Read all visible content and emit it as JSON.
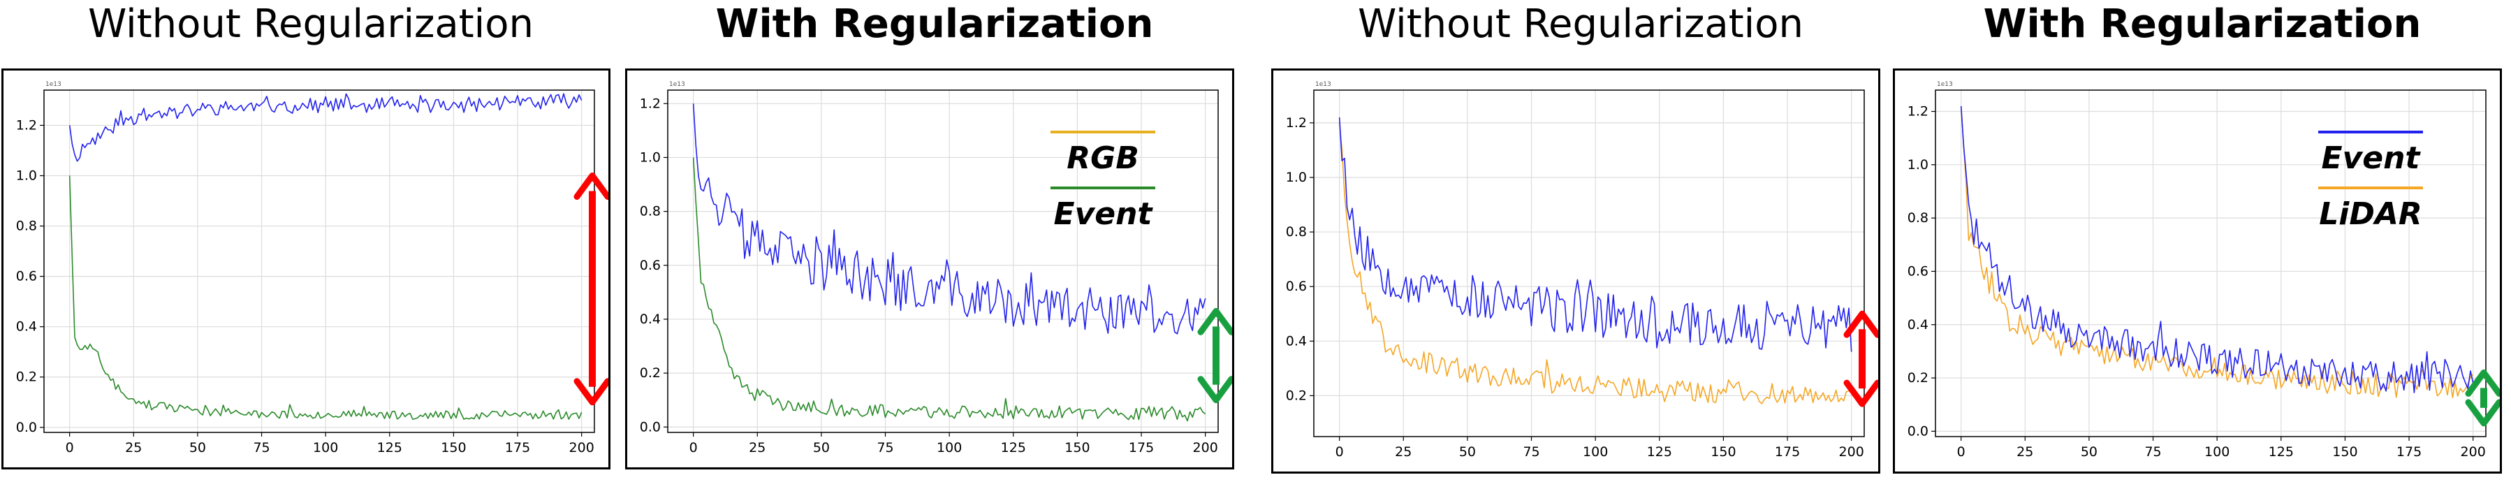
{
  "panels": [
    {
      "title": "Without Regularization",
      "title_bold": false,
      "chart_data": {
        "type": "line",
        "scale_label": "1e13",
        "xlim": [
          -10,
          205
        ],
        "ylim": [
          -0.02,
          1.34
        ],
        "xticks": [
          0,
          25,
          50,
          75,
          100,
          125,
          150,
          175,
          200
        ],
        "xtick_labels": [
          "0",
          "25",
          "50",
          "75",
          "100",
          "125",
          "150",
          "175",
          "200"
        ],
        "yticks": [
          0.0,
          0.2,
          0.4,
          0.6,
          0.8,
          1.0,
          1.2
        ],
        "ytick_labels": [
          "0.0",
          "0.2",
          "0.4",
          "0.6",
          "0.8",
          "1.0",
          "1.2"
        ],
        "grid": true,
        "series": [
          {
            "name": "",
            "color": "#2222ee",
            "kind": "flat",
            "anchors": [
              [
                0,
                1.2
              ],
              [
                2,
                1.07
              ],
              [
                6,
                1.12
              ],
              [
                12,
                1.16
              ],
              [
                20,
                1.22
              ],
              [
                35,
                1.25
              ],
              [
                60,
                1.27
              ],
              [
                100,
                1.28
              ],
              [
                150,
                1.28
              ],
              [
                200,
                1.3
              ]
            ],
            "noise": 0.03,
            "seed": 11
          },
          {
            "name": "",
            "color": "#2a8a2a",
            "kind": "decay",
            "anchors": [
              [
                0,
                1.0
              ],
              [
                2,
                0.35
              ],
              [
                5,
                0.31
              ],
              [
                9,
                0.33
              ],
              [
                14,
                0.22
              ],
              [
                20,
                0.14
              ],
              [
                30,
                0.09
              ],
              [
                45,
                0.07
              ],
              [
                70,
                0.055
              ],
              [
                120,
                0.05
              ],
              [
                200,
                0.05
              ]
            ],
            "noise": 0.018,
            "seed": 23
          }
        ],
        "arrow": {
          "color": "red",
          "from": 1.0,
          "to": 0.1
        }
      }
    },
    {
      "title": "With Regularization",
      "title_bold": true,
      "legend": [
        {
          "label": "RGB",
          "color": "#e6b020"
        },
        {
          "label": "Event",
          "color": "#2a8a2a"
        }
      ],
      "chart_data": {
        "type": "line",
        "scale_label": "1e13",
        "xlim": [
          -10,
          205
        ],
        "ylim": [
          -0.02,
          1.25
        ],
        "xticks": [
          0,
          25,
          50,
          75,
          100,
          125,
          150,
          175,
          200
        ],
        "xtick_labels": [
          "0",
          "25",
          "50",
          "75",
          "100",
          "125",
          "150",
          "175",
          "200"
        ],
        "yticks": [
          0.0,
          0.2,
          0.4,
          0.6,
          0.8,
          1.0,
          1.2
        ],
        "ytick_labels": [
          "0.0",
          "0.2",
          "0.4",
          "0.6",
          "0.8",
          "1.0",
          "1.2"
        ],
        "grid": true,
        "series": [
          {
            "name": "",
            "color": "#2222ee",
            "kind": "decay",
            "anchors": [
              [
                0,
                1.2
              ],
              [
                3,
                0.92
              ],
              [
                8,
                0.85
              ],
              [
                15,
                0.75
              ],
              [
                25,
                0.68
              ],
              [
                40,
                0.62
              ],
              [
                60,
                0.58
              ],
              [
                80,
                0.52
              ],
              [
                100,
                0.5
              ],
              [
                125,
                0.45
              ],
              [
                150,
                0.43
              ],
              [
                175,
                0.42
              ],
              [
                200,
                0.4
              ]
            ],
            "noise": 0.09,
            "seed": 37
          },
          {
            "name": "",
            "color": "#2a8a2a",
            "kind": "decay",
            "anchors": [
              [
                0,
                1.0
              ],
              [
                3,
                0.55
              ],
              [
                6,
                0.42
              ],
              [
                10,
                0.34
              ],
              [
                15,
                0.2
              ],
              [
                22,
                0.13
              ],
              [
                35,
                0.08
              ],
              [
                60,
                0.06
              ],
              [
                100,
                0.055
              ],
              [
                200,
                0.05
              ]
            ],
            "noise": 0.025,
            "seed": 41
          }
        ],
        "arrow": {
          "color": "#18a040",
          "from": 0.43,
          "to": 0.1
        }
      }
    },
    {
      "title": "Without Regularization",
      "title_bold": false,
      "chart_data": {
        "type": "line",
        "scale_label": "1e13",
        "xlim": [
          -10,
          205
        ],
        "ylim": [
          0.05,
          1.32
        ],
        "xticks": [
          0,
          25,
          50,
          75,
          100,
          125,
          150,
          175,
          200
        ],
        "xtick_labels": [
          "0",
          "25",
          "50",
          "75",
          "100",
          "125",
          "150",
          "175",
          "200"
        ],
        "yticks": [
          0.2,
          0.4,
          0.6,
          0.8,
          1.0,
          1.2
        ],
        "ytick_labels": [
          "0.2",
          "0.4",
          "0.6",
          "0.8",
          "1.0",
          "1.2"
        ],
        "grid": true,
        "series": [
          {
            "name": "",
            "color": "#2222ee",
            "kind": "decay",
            "anchors": [
              [
                0,
                1.22
              ],
              [
                4,
                0.85
              ],
              [
                10,
                0.72
              ],
              [
                20,
                0.64
              ],
              [
                40,
                0.58
              ],
              [
                60,
                0.55
              ],
              [
                80,
                0.52
              ],
              [
                100,
                0.5
              ],
              [
                125,
                0.47
              ],
              [
                150,
                0.46
              ],
              [
                175,
                0.45
              ],
              [
                200,
                0.44
              ]
            ],
            "noise": 0.085,
            "seed": 53
          },
          {
            "name": "",
            "color": "#f5a623",
            "kind": "decay",
            "anchors": [
              [
                0,
                1.2
              ],
              [
                4,
                0.75
              ],
              [
                10,
                0.55
              ],
              [
                18,
                0.4
              ],
              [
                30,
                0.33
              ],
              [
                50,
                0.28
              ],
              [
                80,
                0.25
              ],
              [
                120,
                0.22
              ],
              [
                160,
                0.21
              ],
              [
                200,
                0.21
              ]
            ],
            "noise": 0.04,
            "seed": 67
          }
        ],
        "arrow": {
          "color": "red",
          "from": 0.5,
          "to": 0.17
        }
      }
    },
    {
      "title": "With Regularization",
      "title_bold": true,
      "legend": [
        {
          "label": "Event",
          "color": "#2222ee"
        },
        {
          "label": "LiDAR",
          "color": "#f5a623"
        }
      ],
      "chart_data": {
        "type": "line",
        "scale_label": "1e13",
        "xlim": [
          -10,
          205
        ],
        "ylim": [
          -0.02,
          1.28
        ],
        "xticks": [
          0,
          25,
          50,
          75,
          100,
          125,
          150,
          175,
          200
        ],
        "xtick_labels": [
          "0",
          "25",
          "50",
          "75",
          "100",
          "125",
          "150",
          "175",
          "200"
        ],
        "yticks": [
          0.0,
          0.2,
          0.4,
          0.6,
          0.8,
          1.0,
          1.2
        ],
        "ytick_labels": [
          "0.0",
          "0.2",
          "0.4",
          "0.6",
          "0.8",
          "1.0",
          "1.2"
        ],
        "grid": true,
        "series": [
          {
            "name": "",
            "color": "#2222ee",
            "kind": "decay",
            "anchors": [
              [
                0,
                1.22
              ],
              [
                3,
                0.8
              ],
              [
                8,
                0.7
              ],
              [
                15,
                0.58
              ],
              [
                25,
                0.45
              ],
              [
                40,
                0.38
              ],
              [
                60,
                0.33
              ],
              [
                80,
                0.3
              ],
              [
                100,
                0.27
              ],
              [
                125,
                0.24
              ],
              [
                150,
                0.22
              ],
              [
                175,
                0.2
              ],
              [
                200,
                0.21
              ]
            ],
            "noise": 0.06,
            "seed": 71
          },
          {
            "name": "",
            "color": "#f5a623",
            "kind": "decay",
            "anchors": [
              [
                0,
                1.22
              ],
              [
                3,
                0.75
              ],
              [
                8,
                0.62
              ],
              [
                15,
                0.48
              ],
              [
                25,
                0.38
              ],
              [
                40,
                0.32
              ],
              [
                60,
                0.28
              ],
              [
                80,
                0.25
              ],
              [
                100,
                0.23
              ],
              [
                125,
                0.2
              ],
              [
                150,
                0.18
              ],
              [
                175,
                0.17
              ],
              [
                200,
                0.17
              ]
            ],
            "noise": 0.045,
            "seed": 83
          }
        ],
        "arrow": {
          "color": "#18a040",
          "from": 0.22,
          "to": 0.03
        }
      }
    }
  ]
}
